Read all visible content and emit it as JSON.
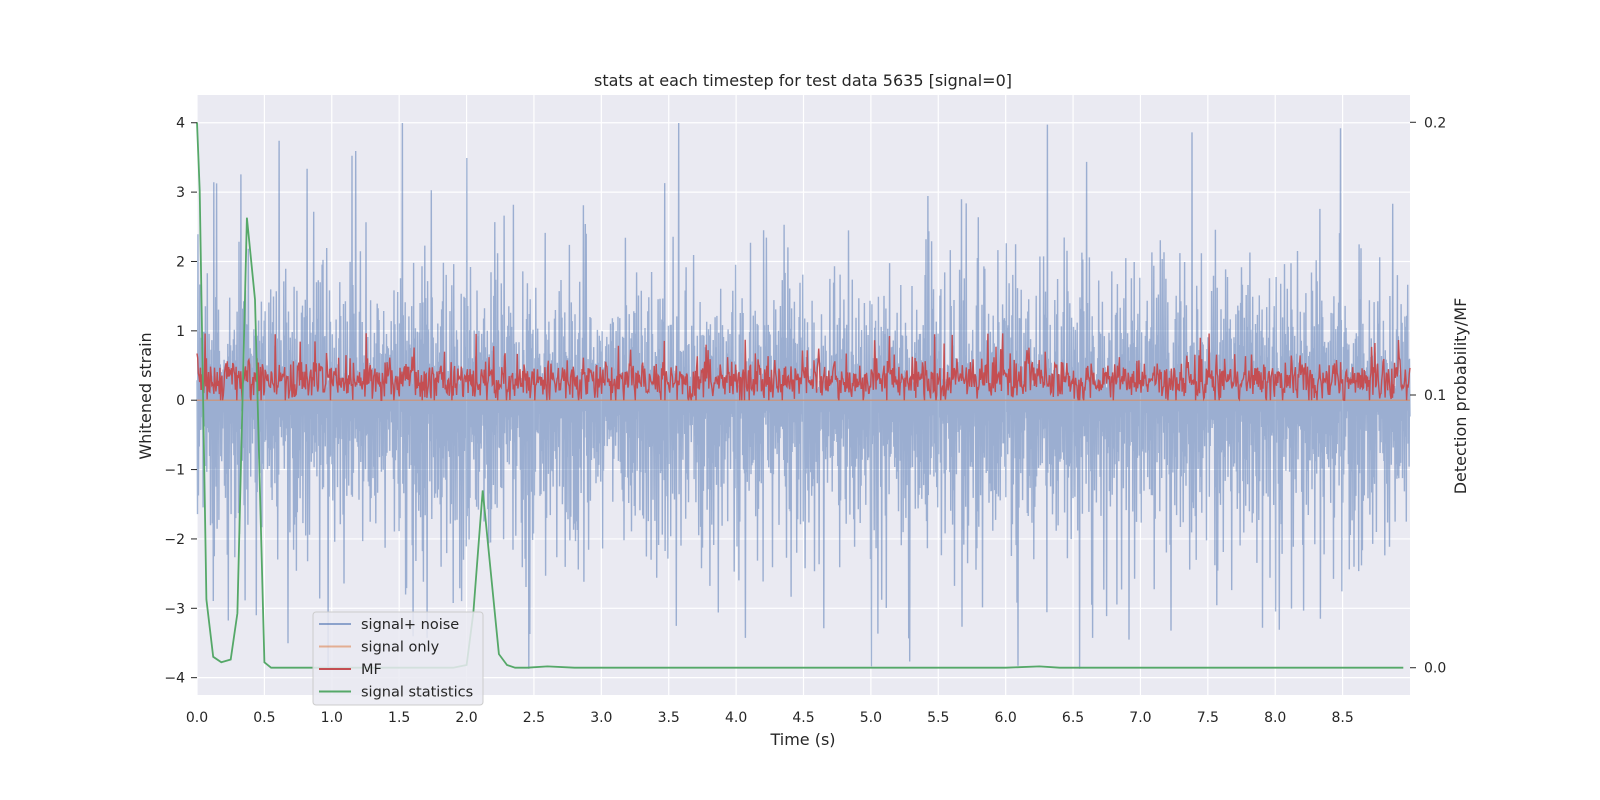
{
  "chart_data": {
    "type": "line",
    "title": "stats at each timestep for test data 5635 [signal=0]",
    "xlabel": "Time (s)",
    "ylabel": "Whitened strain",
    "y2label": "Detection probability/MF",
    "xlim": [
      0.0,
      9.0
    ],
    "ylim": [
      -4.25,
      4.4
    ],
    "y2lim": [
      -0.01,
      0.21
    ],
    "xticks": [
      "0.0",
      "0.5",
      "1.0",
      "1.5",
      "2.0",
      "2.5",
      "3.0",
      "3.5",
      "4.0",
      "4.5",
      "5.0",
      "5.5",
      "6.0",
      "6.5",
      "7.0",
      "7.5",
      "8.0",
      "8.5"
    ],
    "xtick_values": [
      0.0,
      0.5,
      1.0,
      1.5,
      2.0,
      2.5,
      3.0,
      3.5,
      4.0,
      4.5,
      5.0,
      5.5,
      6.0,
      6.5,
      7.0,
      7.5,
      8.0,
      8.5
    ],
    "yticks": [
      "4",
      "3",
      "2",
      "1",
      "0",
      "−1",
      "−2",
      "−3",
      "−4"
    ],
    "ytick_values": [
      4,
      3,
      2,
      1,
      0,
      -1,
      -2,
      -3,
      -4
    ],
    "y2ticks": [
      "0.2",
      "0.1",
      "0.0"
    ],
    "y2tick_values": [
      0.2,
      0.1,
      0.0
    ],
    "legend_position": "lower-left",
    "series": [
      {
        "name": "signal+ noise",
        "color": "#4c72b0",
        "axis": "left",
        "kind": "noise",
        "description_envelope": {
          "upper_typical": 1.6,
          "upper_peak": 4.0,
          "lower_typical": -2.1,
          "lower_peak": -3.9
        }
      },
      {
        "name": "signal only",
        "color": "#dd8452",
        "axis": "left",
        "values_constant": 0.0
      },
      {
        "name": "MF",
        "color": "#c44e52",
        "axis": "left",
        "kind": "noise",
        "description_envelope": {
          "min": 0.0,
          "typical_max": 0.65,
          "peak": 0.97
        }
      },
      {
        "name": "signal statistics",
        "color": "#55a868",
        "axis": "right",
        "x": [
          0.0,
          0.02,
          0.07,
          0.12,
          0.18,
          0.25,
          0.3,
          0.37,
          0.43,
          0.5,
          0.55,
          1.0,
          1.5,
          1.9,
          2.0,
          2.05,
          2.12,
          2.18,
          2.24,
          2.3,
          2.36,
          2.45,
          2.6,
          2.8,
          3.0,
          4.0,
          5.0,
          5.5,
          6.0,
          6.25,
          6.4,
          7.0,
          8.0,
          8.95
        ],
        "values": [
          0.2,
          0.175,
          0.025,
          0.004,
          0.002,
          0.003,
          0.02,
          0.165,
          0.135,
          0.002,
          0.0,
          0.0,
          0.0,
          0.0,
          0.001,
          0.02,
          0.065,
          0.035,
          0.005,
          0.001,
          0.0,
          0.0,
          0.0005,
          0.0,
          0.0,
          0.0,
          0.0,
          0.0,
          0.0,
          0.0005,
          0.0,
          0.0,
          0.0,
          0.0
        ]
      }
    ]
  }
}
